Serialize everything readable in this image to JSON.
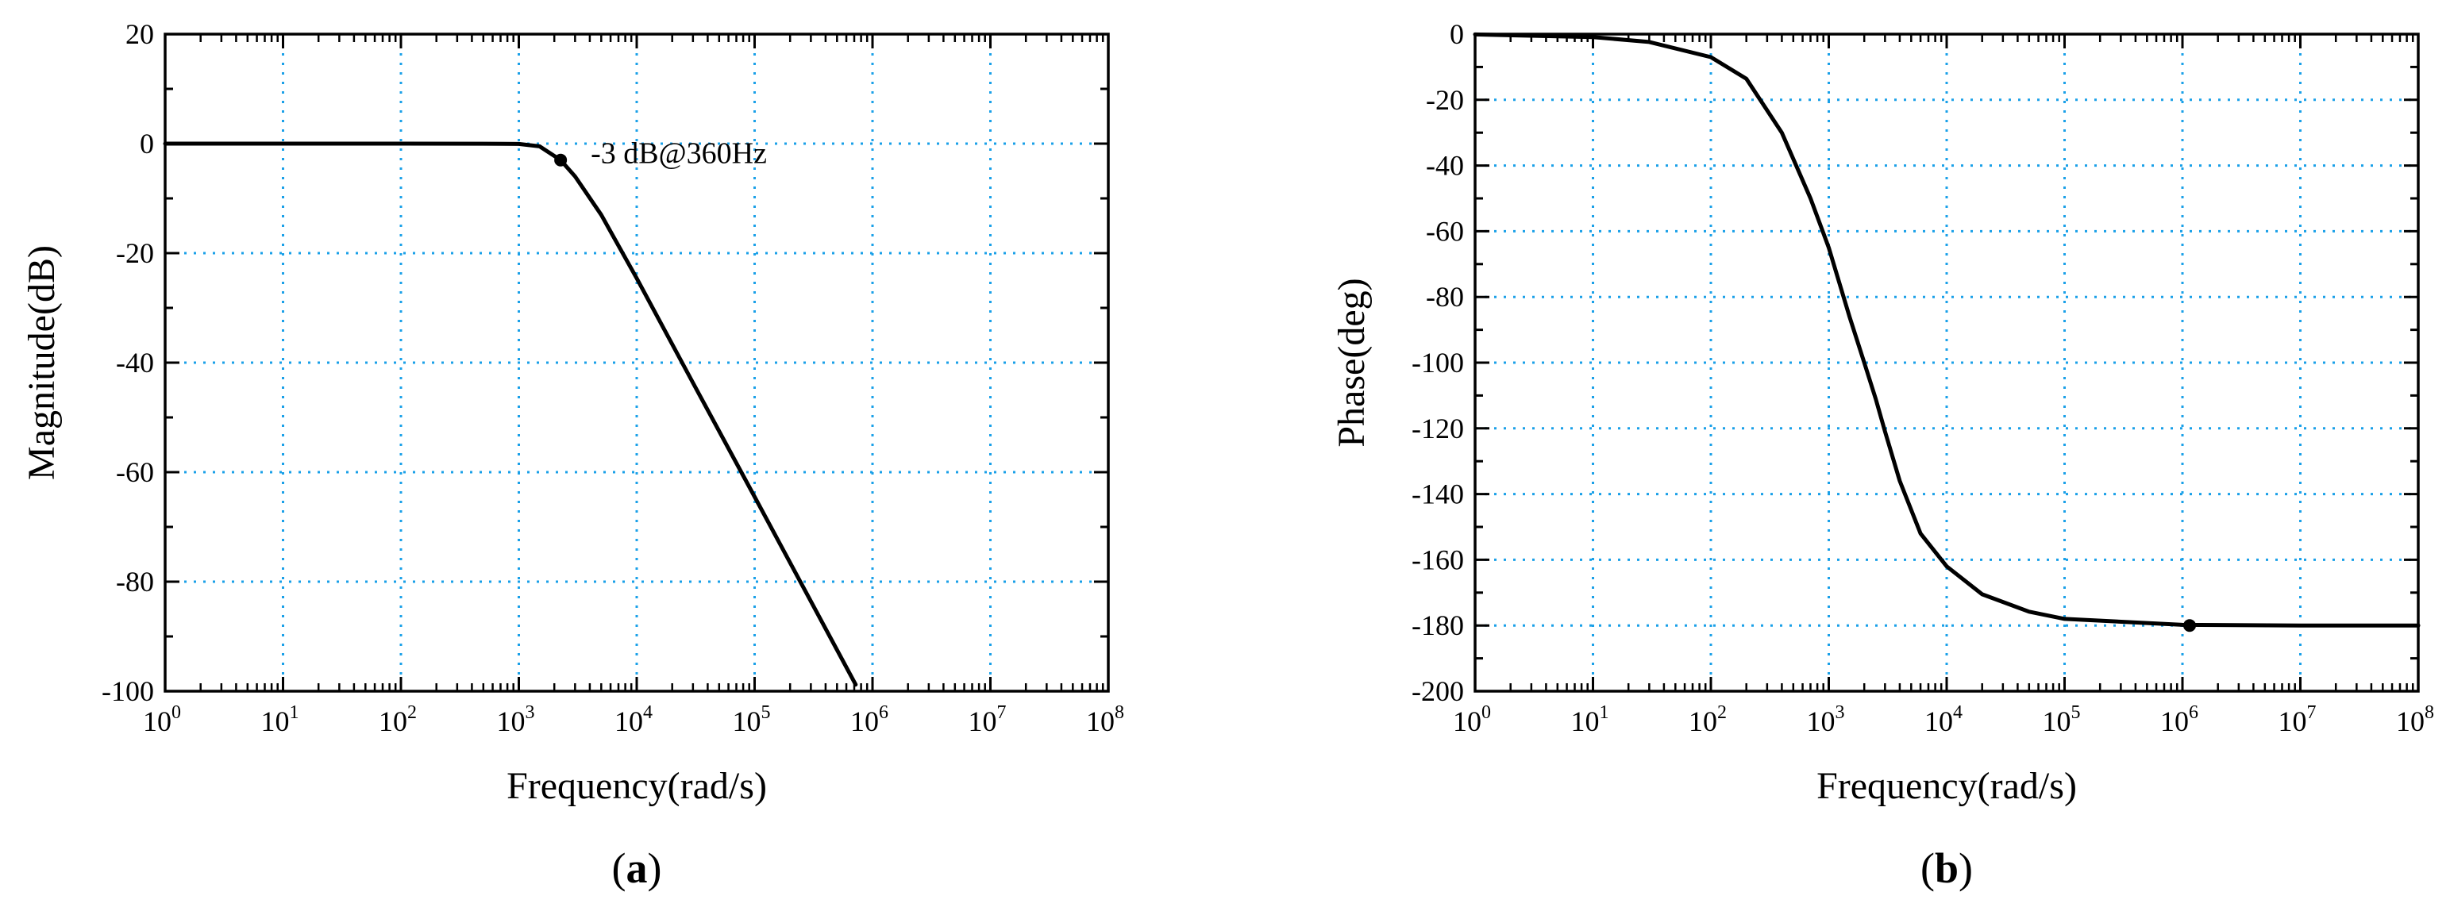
{
  "chart_data": [
    {
      "type": "line",
      "panel_label": {
        "open": "(",
        "letter": "a",
        "close": ")"
      },
      "xlabel": "Frequency(rad/s)",
      "ylabel": "Magnitude(dB)",
      "x_scale": "log",
      "x_tick_base": "10",
      "x_tick_exponents": [
        "0",
        "1",
        "2",
        "3",
        "4",
        "5",
        "6",
        "7",
        "8"
      ],
      "xlim": [
        1,
        100000000
      ],
      "ylim": [
        -100,
        20
      ],
      "y_ticks": [
        "-100",
        "-80",
        "-60",
        "-40",
        "-20",
        "0",
        "20"
      ],
      "grid": true,
      "line_color": "#000000",
      "grid_color": "#1aa0e8",
      "series": [
        {
          "x": [
            1,
            10,
            100,
            500,
            1000,
            1500,
            2262,
            3000,
            5000,
            10000,
            30000,
            100000,
            300000,
            720000
          ],
          "y": [
            0,
            0,
            0,
            -0.01,
            -0.06,
            -0.5,
            -3,
            -6,
            -13,
            -24.6,
            -43.7,
            -64.5,
            -83.6,
            -98.8
          ]
        }
      ],
      "marker": {
        "x": 2262,
        "y": -3
      },
      "annotation": {
        "text": "-3 dB@360Hz",
        "x": 2262,
        "y": -3
      }
    },
    {
      "type": "line",
      "panel_label": {
        "open": "(",
        "letter": "b",
        "close": ")"
      },
      "xlabel": "Frequency(rad/s)",
      "ylabel": "Phase(deg)",
      "x_scale": "log",
      "x_tick_base": "10",
      "x_tick_exponents": [
        "0",
        "1",
        "2",
        "3",
        "4",
        "5",
        "6",
        "7",
        "8"
      ],
      "xlim": [
        1,
        100000000
      ],
      "ylim": [
        -200,
        0
      ],
      "y_ticks": [
        "-200",
        "-180",
        "-160",
        "-140",
        "-120",
        "-100",
        "-80",
        "-60",
        "-40",
        "-20",
        "0"
      ],
      "grid": true,
      "line_color": "#000000",
      "grid_color": "#1aa0e8",
      "series": [
        {
          "x": [
            1,
            10,
            30,
            100,
            200,
            400,
            700,
            1000,
            1500,
            2000,
            2500,
            3000,
            4000,
            6000,
            10000,
            20000,
            50000,
            100000,
            1000000,
            10000000,
            100000000
          ],
          "y": [
            -0.1,
            -0.9,
            -2.4,
            -7,
            -13.6,
            -30,
            -50,
            -65,
            -86,
            -100,
            -111,
            -121,
            -136,
            -152,
            -162,
            -170.5,
            -175.8,
            -178,
            -179.8,
            -180,
            -180
          ]
        }
      ],
      "marker": {
        "x": 1150000,
        "y": -180
      }
    }
  ]
}
